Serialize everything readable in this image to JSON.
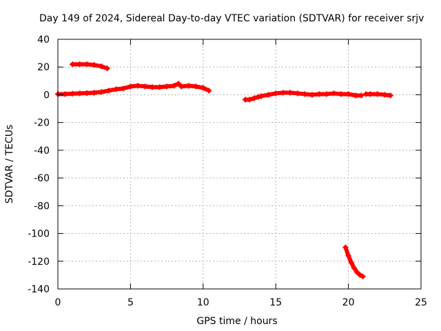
{
  "chart_data": {
    "type": "scatter",
    "title": "Day 149 of 2024, Sidereal Day-to-day VTEC variation (SDTVAR) for receiver srjv",
    "xlabel": "GPS time / hours",
    "ylabel": "SDTVAR / TECUs",
    "xlim": [
      0,
      25
    ],
    "ylim": [
      -140,
      40
    ],
    "x_ticks": [
      0,
      5,
      10,
      15,
      20,
      25
    ],
    "y_ticks": [
      -140,
      -120,
      -100,
      -80,
      -60,
      -40,
      -20,
      0,
      20,
      40
    ],
    "grid": true,
    "legend": "none",
    "marker_color": "#ff0000",
    "series": [
      {
        "segments": [
          {
            "x": [
              1.0,
              1.5,
              2.0,
              2.5,
              3.0,
              3.4
            ],
            "y": [
              22,
              22,
              22,
              21.5,
              20.5,
              19
            ]
          },
          {
            "x": [
              0.0,
              0.5,
              1.0,
              1.5,
              2.0,
              2.5,
              3.0,
              3.5,
              4.0,
              4.5,
              5.0,
              5.5,
              6.0,
              6.5,
              7.0,
              7.5,
              8.0,
              8.3,
              8.5,
              9.0,
              9.5,
              10.0,
              10.4
            ],
            "y": [
              0.5,
              0.5,
              0.8,
              1.0,
              1.2,
              1.5,
              2.0,
              3.0,
              4.0,
              4.5,
              6.0,
              6.5,
              6.0,
              5.5,
              5.5,
              6.0,
              6.5,
              8.0,
              6.0,
              6.5,
              6.0,
              5.0,
              3.0
            ]
          },
          {
            "x": [
              12.9,
              13.2,
              13.5,
              13.8,
              14.0,
              14.5,
              15.0,
              15.5,
              16.0,
              16.5,
              17.0,
              17.5,
              18.0,
              18.5,
              19.0,
              19.5,
              20.0,
              20.5,
              20.9
            ],
            "y": [
              -3.5,
              -3.5,
              -2.5,
              -1.5,
              -1.0,
              0.0,
              1.0,
              1.5,
              1.5,
              1.0,
              0.5,
              0.0,
              0.5,
              0.5,
              1.0,
              0.5,
              0.5,
              -0.5,
              -0.5
            ]
          },
          {
            "x": [
              21.2,
              21.5,
              22.0,
              22.5,
              22.9
            ],
            "y": [
              0.5,
              0.5,
              0.5,
              0.0,
              -0.5
            ]
          },
          {
            "x": [
              19.8,
              20.0,
              20.2,
              20.4,
              20.6,
              20.8,
              21.0
            ],
            "y": [
              -110,
              -116,
              -121,
              -125,
              -128,
              -130,
              -131
            ]
          }
        ]
      }
    ]
  }
}
